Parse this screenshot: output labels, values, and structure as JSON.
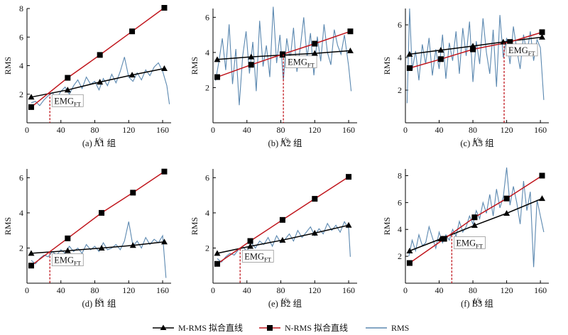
{
  "colors": {
    "m": "#000000",
    "n": "#c0161d",
    "rms": "#5b88b0",
    "marker": "#c0161d"
  },
  "legend": {
    "m": "M-RMS 拟合直线",
    "n": "N-RMS 拟合直线",
    "rms": "RMS"
  },
  "chart_data": [
    {
      "id": "a",
      "type": "line",
      "caption": "(a) A1 组",
      "xlabel": "t/s",
      "ylabel": "RMS",
      "xlim": [
        0,
        170
      ],
      "ylim": [
        0,
        8
      ],
      "xticks": [
        0,
        40,
        80,
        120,
        160
      ],
      "yticks": [
        2,
        4,
        6,
        8
      ],
      "emg_label": "EMG",
      "emg_sub": "FT",
      "emg_x": 27,
      "m_points": [
        [
          5,
          1.8
        ],
        [
          48,
          2.3
        ],
        [
          86,
          2.85
        ],
        [
          124,
          3.35
        ],
        [
          162,
          3.8
        ]
      ],
      "n_points": [
        [
          5,
          1.1
        ],
        [
          48,
          3.15
        ],
        [
          86,
          4.75
        ],
        [
          124,
          6.4
        ],
        [
          162,
          8.05
        ]
      ],
      "rms": [
        [
          5,
          1.4
        ],
        [
          10,
          1.5
        ],
        [
          15,
          1.2
        ],
        [
          20,
          1.6
        ],
        [
          25,
          1.9
        ],
        [
          30,
          2.1
        ],
        [
          35,
          1.7
        ],
        [
          40,
          2.2
        ],
        [
          45,
          2.5
        ],
        [
          50,
          2.0
        ],
        [
          55,
          2.6
        ],
        [
          60,
          3.0
        ],
        [
          65,
          2.4
        ],
        [
          70,
          3.2
        ],
        [
          75,
          2.7
        ],
        [
          80,
          2.9
        ],
        [
          85,
          2.3
        ],
        [
          90,
          3.1
        ],
        [
          95,
          2.6
        ],
        [
          100,
          3.4
        ],
        [
          105,
          2.8
        ],
        [
          110,
          3.6
        ],
        [
          115,
          4.6
        ],
        [
          120,
          3.2
        ],
        [
          125,
          2.9
        ],
        [
          130,
          3.5
        ],
        [
          135,
          3.0
        ],
        [
          140,
          3.7
        ],
        [
          145,
          3.3
        ],
        [
          150,
          3.9
        ],
        [
          155,
          4.2
        ],
        [
          160,
          3.6
        ],
        [
          165,
          2.6
        ],
        [
          168,
          1.3
        ]
      ]
    },
    {
      "id": "b",
      "type": "line",
      "caption": "(b) A2 组",
      "xlabel": "t/s",
      "ylabel": "RMS",
      "xlim": [
        0,
        170
      ],
      "ylim": [
        0,
        6.5
      ],
      "xticks": [
        0,
        40,
        80,
        120,
        160
      ],
      "yticks": [
        2,
        4,
        6
      ],
      "emg_label": "EMG",
      "emg_sub": "FT",
      "emg_x": 83,
      "m_points": [
        [
          5,
          3.6
        ],
        [
          45,
          3.75
        ],
        [
          82,
          3.85
        ],
        [
          120,
          3.95
        ],
        [
          162,
          4.1
        ]
      ],
      "n_points": [
        [
          5,
          2.6
        ],
        [
          45,
          3.3
        ],
        [
          82,
          3.9
        ],
        [
          120,
          4.5
        ],
        [
          162,
          5.2
        ]
      ],
      "rms": [
        [
          3,
          2.4
        ],
        [
          7,
          3.5
        ],
        [
          11,
          4.8
        ],
        [
          15,
          3.0
        ],
        [
          19,
          5.6
        ],
        [
          23,
          2.2
        ],
        [
          27,
          4.2
        ],
        [
          31,
          1.0
        ],
        [
          35,
          3.8
        ],
        [
          39,
          5.2
        ],
        [
          43,
          2.8
        ],
        [
          47,
          4.6
        ],
        [
          51,
          1.8
        ],
        [
          55,
          5.8
        ],
        [
          59,
          3.2
        ],
        [
          63,
          4.4
        ],
        [
          67,
          2.6
        ],
        [
          71,
          6.6
        ],
        [
          75,
          3.4
        ],
        [
          79,
          5.0
        ],
        [
          83,
          2.4
        ],
        [
          87,
          4.8
        ],
        [
          91,
          3.6
        ],
        [
          95,
          5.4
        ],
        [
          99,
          2.9
        ],
        [
          103,
          4.3
        ],
        [
          107,
          6.0
        ],
        [
          111,
          3.7
        ],
        [
          115,
          5.1
        ],
        [
          119,
          2.7
        ],
        [
          123,
          4.9
        ],
        [
          127,
          3.5
        ],
        [
          131,
          5.6
        ],
        [
          135,
          4.0
        ],
        [
          139,
          3.3
        ],
        [
          143,
          5.3
        ],
        [
          147,
          4.4
        ],
        [
          151,
          3.9
        ],
        [
          155,
          5.0
        ],
        [
          160,
          3.2
        ],
        [
          163,
          1.8
        ]
      ]
    },
    {
      "id": "c",
      "type": "line",
      "caption": "(c) A3 组",
      "xlabel": "t/s",
      "ylabel": "RMS",
      "xlim": [
        0,
        170
      ],
      "ylim": [
        0,
        7
      ],
      "xticks": [
        0,
        40,
        80,
        120,
        160
      ],
      "yticks": [
        2,
        4,
        6
      ],
      "emg_label": "EMG",
      "emg_sub": "FT",
      "emg_x": 117,
      "m_points": [
        [
          5,
          4.2
        ],
        [
          42,
          4.45
        ],
        [
          80,
          4.7
        ],
        [
          116,
          4.95
        ],
        [
          162,
          5.25
        ]
      ],
      "n_points": [
        [
          5,
          3.35
        ],
        [
          42,
          3.9
        ],
        [
          80,
          4.5
        ],
        [
          124,
          4.95
        ],
        [
          162,
          5.55
        ]
      ],
      "rms": [
        [
          2,
          1.2
        ],
        [
          5,
          7.0
        ],
        [
          8,
          3.2
        ],
        [
          12,
          4.4
        ],
        [
          16,
          2.6
        ],
        [
          20,
          4.8
        ],
        [
          24,
          3.6
        ],
        [
          28,
          5.2
        ],
        [
          32,
          2.9
        ],
        [
          36,
          4.5
        ],
        [
          40,
          3.3
        ],
        [
          44,
          5.4
        ],
        [
          48,
          2.7
        ],
        [
          52,
          4.9
        ],
        [
          56,
          3.8
        ],
        [
          60,
          5.6
        ],
        [
          64,
          3.0
        ],
        [
          68,
          5.8
        ],
        [
          72,
          4.1
        ],
        [
          76,
          6.2
        ],
        [
          80,
          2.5
        ],
        [
          84,
          5.0
        ],
        [
          88,
          3.6
        ],
        [
          92,
          6.4
        ],
        [
          96,
          4.3
        ],
        [
          100,
          3.0
        ],
        [
          104,
          5.7
        ],
        [
          108,
          2.2
        ],
        [
          112,
          6.6
        ],
        [
          116,
          4.0
        ],
        [
          120,
          5.2
        ],
        [
          124,
          3.6
        ],
        [
          128,
          5.9
        ],
        [
          132,
          4.5
        ],
        [
          136,
          3.3
        ],
        [
          140,
          5.4
        ],
        [
          144,
          4.2
        ],
        [
          148,
          5.6
        ],
        [
          152,
          3.8
        ],
        [
          156,
          5.1
        ],
        [
          160,
          4.6
        ],
        [
          164,
          1.4
        ]
      ]
    },
    {
      "id": "d",
      "type": "line",
      "caption": "(d) B1 组",
      "xlabel": "t/s",
      "ylabel": "RMS",
      "xlim": [
        0,
        170
      ],
      "ylim": [
        0,
        6.5
      ],
      "xticks": [
        0,
        40,
        80,
        120,
        160
      ],
      "yticks": [
        2,
        4,
        6
      ],
      "emg_label": "EMG",
      "emg_sub": "FT",
      "emg_x": 27,
      "m_points": [
        [
          5,
          1.7
        ],
        [
          48,
          1.85
        ],
        [
          88,
          2.0
        ],
        [
          125,
          2.15
        ],
        [
          162,
          2.35
        ]
      ],
      "n_points": [
        [
          5,
          1.0
        ],
        [
          48,
          2.55
        ],
        [
          88,
          4.0
        ],
        [
          125,
          5.15
        ],
        [
          162,
          6.35
        ]
      ],
      "rms": [
        [
          5,
          1.3
        ],
        [
          10,
          1.1
        ],
        [
          15,
          1.4
        ],
        [
          20,
          1.6
        ],
        [
          25,
          1.5
        ],
        [
          30,
          1.8
        ],
        [
          35,
          1.6
        ],
        [
          40,
          1.9
        ],
        [
          45,
          1.7
        ],
        [
          50,
          2.1
        ],
        [
          55,
          1.8
        ],
        [
          60,
          2.0
        ],
        [
          65,
          1.7
        ],
        [
          70,
          2.2
        ],
        [
          75,
          1.9
        ],
        [
          80,
          2.1
        ],
        [
          85,
          1.8
        ],
        [
          90,
          2.3
        ],
        [
          95,
          1.9
        ],
        [
          100,
          2.0
        ],
        [
          105,
          2.2
        ],
        [
          110,
          1.9
        ],
        [
          115,
          2.4
        ],
        [
          120,
          3.5
        ],
        [
          125,
          2.1
        ],
        [
          130,
          2.4
        ],
        [
          135,
          2.0
        ],
        [
          140,
          2.6
        ],
        [
          145,
          2.2
        ],
        [
          150,
          2.5
        ],
        [
          155,
          2.3
        ],
        [
          160,
          2.7
        ],
        [
          164,
          0.3
        ]
      ]
    },
    {
      "id": "e",
      "type": "line",
      "caption": "(e) B2 组",
      "xlabel": "t/s",
      "ylabel": "RMS",
      "xlim": [
        0,
        170
      ],
      "ylim": [
        0,
        6.5
      ],
      "xticks": [
        0,
        40,
        80,
        120,
        160
      ],
      "yticks": [
        2,
        4,
        6
      ],
      "emg_label": "EMG",
      "emg_sub": "FT",
      "emg_x": 32,
      "m_points": [
        [
          5,
          1.7
        ],
        [
          44,
          2.1
        ],
        [
          82,
          2.45
        ],
        [
          120,
          2.85
        ],
        [
          160,
          3.3
        ]
      ],
      "n_points": [
        [
          5,
          1.1
        ],
        [
          44,
          2.4
        ],
        [
          82,
          3.6
        ],
        [
          120,
          4.8
        ],
        [
          160,
          6.05
        ]
      ],
      "rms": [
        [
          5,
          1.4
        ],
        [
          10,
          1.2
        ],
        [
          15,
          1.5
        ],
        [
          20,
          1.7
        ],
        [
          25,
          1.6
        ],
        [
          30,
          1.9
        ],
        [
          35,
          2.1
        ],
        [
          40,
          1.8
        ],
        [
          45,
          2.3
        ],
        [
          50,
          2.0
        ],
        [
          55,
          2.4
        ],
        [
          60,
          2.2
        ],
        [
          65,
          2.6
        ],
        [
          70,
          2.1
        ],
        [
          75,
          2.7
        ],
        [
          80,
          2.3
        ],
        [
          85,
          2.5
        ],
        [
          90,
          2.8
        ],
        [
          95,
          2.4
        ],
        [
          100,
          3.0
        ],
        [
          105,
          2.6
        ],
        [
          110,
          2.9
        ],
        [
          115,
          3.2
        ],
        [
          120,
          2.7
        ],
        [
          125,
          3.1
        ],
        [
          130,
          2.8
        ],
        [
          135,
          3.4
        ],
        [
          140,
          3.0
        ],
        [
          145,
          3.3
        ],
        [
          150,
          2.9
        ],
        [
          155,
          3.5
        ],
        [
          160,
          3.1
        ],
        [
          162,
          1.5
        ]
      ]
    },
    {
      "id": "f",
      "type": "line",
      "caption": "(f) B3 组",
      "xlabel": "t/s",
      "ylabel": "RMS",
      "xlim": [
        0,
        170
      ],
      "ylim": [
        0,
        8.5
      ],
      "xticks": [
        0,
        40,
        80,
        120,
        160
      ],
      "yticks": [
        2,
        4,
        6,
        8
      ],
      "emg_label": "EMG",
      "emg_sub": "FT",
      "emg_x": 55,
      "m_points": [
        [
          5,
          2.4
        ],
        [
          42,
          3.3
        ],
        [
          82,
          4.3
        ],
        [
          120,
          5.2
        ],
        [
          162,
          6.3
        ]
      ],
      "n_points": [
        [
          5,
          1.5
        ],
        [
          46,
          3.3
        ],
        [
          82,
          4.9
        ],
        [
          120,
          6.3
        ],
        [
          162,
          8.0
        ]
      ],
      "rms": [
        [
          4,
          2.0
        ],
        [
          8,
          3.2
        ],
        [
          12,
          2.4
        ],
        [
          16,
          3.6
        ],
        [
          20,
          2.8
        ],
        [
          24,
          3.0
        ],
        [
          28,
          4.2
        ],
        [
          32,
          3.4
        ],
        [
          36,
          2.6
        ],
        [
          40,
          3.8
        ],
        [
          44,
          3.0
        ],
        [
          48,
          3.6
        ],
        [
          52,
          3.2
        ],
        [
          56,
          4.0
        ],
        [
          60,
          3.5
        ],
        [
          64,
          4.6
        ],
        [
          68,
          3.8
        ],
        [
          72,
          4.2
        ],
        [
          76,
          5.0
        ],
        [
          80,
          4.4
        ],
        [
          84,
          5.4
        ],
        [
          88,
          4.8
        ],
        [
          92,
          6.0
        ],
        [
          96,
          5.2
        ],
        [
          100,
          6.6
        ],
        [
          104,
          5.0
        ],
        [
          108,
          7.0
        ],
        [
          112,
          5.6
        ],
        [
          116,
          6.4
        ],
        [
          120,
          8.6
        ],
        [
          124,
          5.8
        ],
        [
          128,
          7.2
        ],
        [
          132,
          6.0
        ],
        [
          136,
          4.4
        ],
        [
          140,
          7.6
        ],
        [
          144,
          5.4
        ],
        [
          148,
          6.8
        ],
        [
          152,
          1.2
        ],
        [
          156,
          6.2
        ],
        [
          160,
          5.0
        ],
        [
          164,
          3.8
        ]
      ]
    }
  ]
}
